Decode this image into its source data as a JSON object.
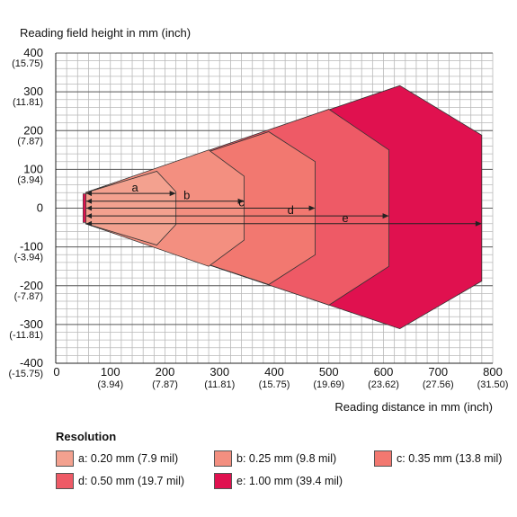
{
  "chart_data": {
    "type": "area",
    "title": "",
    "ylabel": "Reading field height in mm (inch)",
    "xlabel": "Reading distance in mm (inch)",
    "xlim": [
      0,
      800
    ],
    "ylim": [
      -400,
      400
    ],
    "grid": true,
    "x_ticks": [
      {
        "value": 0,
        "label": "0",
        "sub": ""
      },
      {
        "value": 100,
        "label": "100",
        "sub": "(3.94)"
      },
      {
        "value": 200,
        "label": "200",
        "sub": "(7.87)"
      },
      {
        "value": 300,
        "label": "300",
        "sub": "(11.81)"
      },
      {
        "value": 400,
        "label": "400",
        "sub": "(15.75)"
      },
      {
        "value": 500,
        "label": "500",
        "sub": "(19.69)"
      },
      {
        "value": 600,
        "label": "600",
        "sub": "(23.62)"
      },
      {
        "value": 700,
        "label": "700",
        "sub": "(27.56)"
      },
      {
        "value": 800,
        "label": "800",
        "sub": "(31.50)"
      }
    ],
    "y_ticks": [
      {
        "value": 400,
        "label": "400",
        "sub": "(15.75)"
      },
      {
        "value": 300,
        "label": "300",
        "sub": "(11.81)"
      },
      {
        "value": 200,
        "label": "200",
        "sub": "(7.87)"
      },
      {
        "value": 100,
        "label": "100",
        "sub": "(3.94)"
      },
      {
        "value": 0,
        "label": "0",
        "sub": ""
      },
      {
        "value": -100,
        "label": "-100",
        "sub": "(-3.94)"
      },
      {
        "value": -200,
        "label": "-200",
        "sub": "(-7.87)"
      },
      {
        "value": -300,
        "label": "-300",
        "sub": "(-11.81)"
      },
      {
        "value": -400,
        "label": "-400",
        "sub": "(-15.75)"
      }
    ],
    "series": [
      {
        "name": "e",
        "color": "#e0114f",
        "reach": 780,
        "outline": [
          [
            55,
            -40
          ],
          [
            55,
            40
          ],
          [
            630,
            316
          ],
          [
            780,
            188
          ],
          [
            780,
            -188
          ],
          [
            630,
            -311
          ]
        ]
      },
      {
        "name": "d",
        "color": "#ee5a66",
        "reach": 610,
        "outline": [
          [
            55,
            -40
          ],
          [
            55,
            40
          ],
          [
            500,
            255
          ],
          [
            610,
            150
          ],
          [
            610,
            -150
          ],
          [
            500,
            -250
          ]
        ]
      },
      {
        "name": "c",
        "color": "#f27870",
        "reach": 475,
        "outline": [
          [
            55,
            -40
          ],
          [
            55,
            40
          ],
          [
            390,
            197
          ],
          [
            475,
            120
          ],
          [
            475,
            -120
          ],
          [
            390,
            -197
          ]
        ]
      },
      {
        "name": "b",
        "color": "#f38f80",
        "reach": 345,
        "outline": [
          [
            55,
            -40
          ],
          [
            55,
            40
          ],
          [
            280,
            150
          ],
          [
            345,
            82
          ],
          [
            345,
            -82
          ],
          [
            280,
            -150
          ]
        ]
      },
      {
        "name": "a",
        "color": "#f3a18f",
        "reach": 220,
        "outline": [
          [
            55,
            -40
          ],
          [
            55,
            40
          ],
          [
            185,
            95
          ],
          [
            220,
            42
          ],
          [
            220,
            -42
          ],
          [
            185,
            -95
          ]
        ]
      }
    ],
    "source_block": {
      "x": [
        50,
        55
      ],
      "y": [
        -37,
        37
      ],
      "color": "#e0114f"
    },
    "range_arrows": [
      {
        "name": "a",
        "y": 38,
        "x_end": 220,
        "label_x": 145
      },
      {
        "name": "b",
        "y": 18,
        "x_end": 345,
        "label_x": 240
      },
      {
        "name": "c",
        "y": 0,
        "x_end": 475,
        "label_x": 340
      },
      {
        "name": "d",
        "y": -20,
        "x_end": 610,
        "label_x": 430
      },
      {
        "name": "e",
        "y": -40,
        "x_end": 780,
        "label_x": 530
      }
    ]
  },
  "legend": {
    "title": "Resolution",
    "items": [
      {
        "label": "a: 0.20 mm (7.9 mil)",
        "color": "#f3a18f"
      },
      {
        "label": "b: 0.25 mm (9.8 mil)",
        "color": "#f38f80"
      },
      {
        "label": "c: 0.35 mm (13.8 mil)",
        "color": "#f27870"
      },
      {
        "label": "d: 0.50 mm (19.7 mil)",
        "color": "#ee5a66"
      },
      {
        "label": "e: 1.00 mm (39.4 mil)",
        "color": "#e0114f"
      }
    ]
  }
}
